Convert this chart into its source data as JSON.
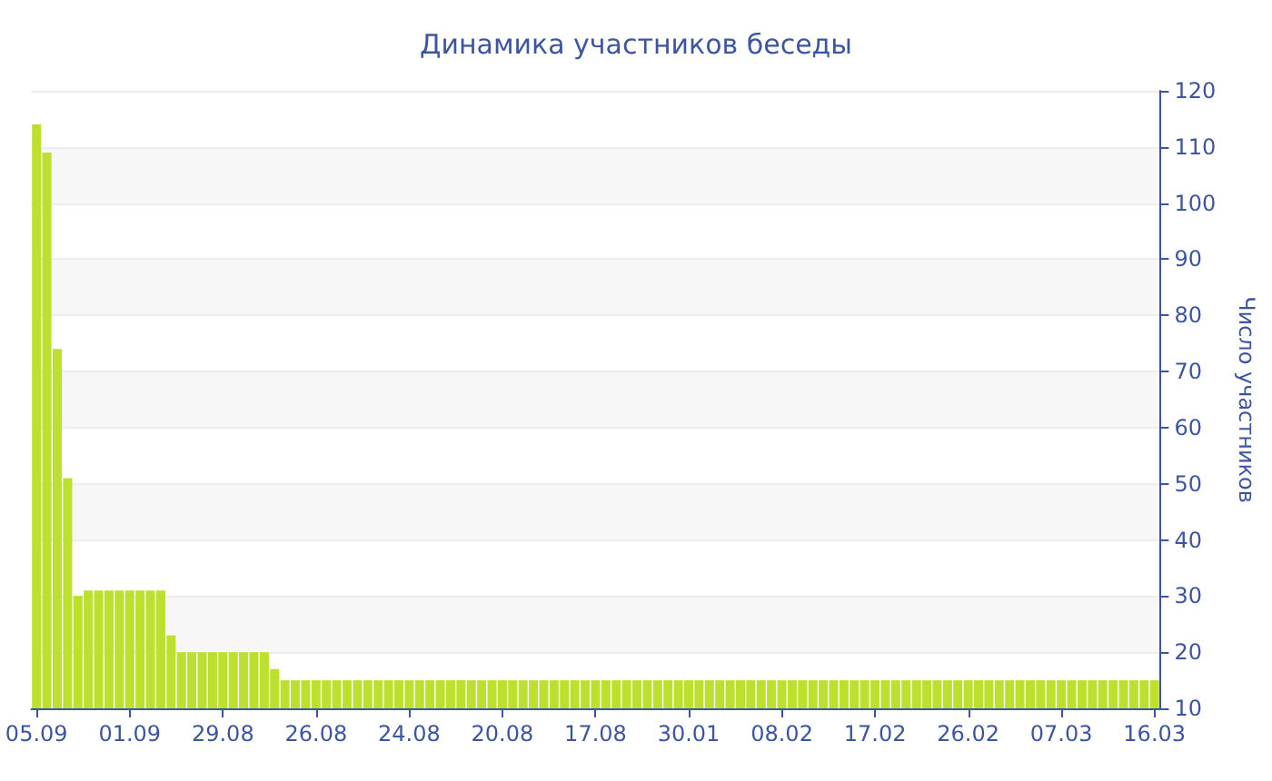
{
  "chart_data": {
    "type": "bar",
    "title": "Динамика участников беседы",
    "ylabel": "Число участников",
    "categories": [
      "05.09",
      null,
      null,
      null,
      null,
      null,
      null,
      null,
      null,
      "01.09",
      null,
      null,
      null,
      null,
      null,
      null,
      null,
      null,
      "29.08",
      null,
      null,
      null,
      null,
      null,
      null,
      null,
      null,
      "26.08",
      null,
      null,
      null,
      null,
      null,
      null,
      null,
      null,
      "24.08",
      null,
      null,
      null,
      null,
      null,
      null,
      null,
      null,
      "20.08",
      null,
      null,
      null,
      null,
      null,
      null,
      null,
      null,
      "17.08",
      null,
      null,
      null,
      null,
      null,
      null,
      null,
      null,
      "30.01",
      null,
      null,
      null,
      null,
      null,
      null,
      null,
      null,
      "08.02",
      null,
      null,
      null,
      null,
      null,
      null,
      null,
      null,
      "17.02",
      null,
      null,
      null,
      null,
      null,
      null,
      null,
      null,
      "26.02",
      null,
      null,
      null,
      null,
      null,
      null,
      null,
      null,
      "07.03",
      null,
      null,
      null,
      null,
      null,
      null,
      null,
      null,
      "16.03"
    ],
    "values": [
      114,
      109,
      74,
      51,
      30,
      31,
      31,
      31,
      31,
      31,
      31,
      31,
      31,
      23,
      20,
      20,
      20,
      20,
      20,
      20,
      20,
      20,
      20,
      17,
      15,
      15,
      15,
      15,
      15,
      15,
      15,
      15,
      15,
      15,
      15,
      15,
      15,
      15,
      15,
      15,
      15,
      15,
      15,
      15,
      15,
      15,
      15,
      15,
      15,
      15,
      15,
      15,
      15,
      15,
      15,
      15,
      15,
      15,
      15,
      15,
      15,
      15,
      15,
      15,
      15,
      15,
      15,
      15,
      15,
      15,
      15,
      15,
      15,
      15,
      15,
      15,
      15,
      15,
      15,
      15,
      15,
      15,
      15,
      15,
      15,
      15,
      15,
      15,
      15,
      15,
      15,
      15,
      15,
      15,
      15,
      15,
      15,
      15,
      15,
      15,
      15,
      15,
      15,
      15,
      15,
      15,
      15,
      15,
      15
    ],
    "color": "#bde02e",
    "ylim": [
      10,
      120
    ],
    "yticks": [
      10,
      20,
      30,
      40,
      50,
      60,
      70,
      80,
      90,
      100,
      110,
      120
    ],
    "grid": "y"
  }
}
